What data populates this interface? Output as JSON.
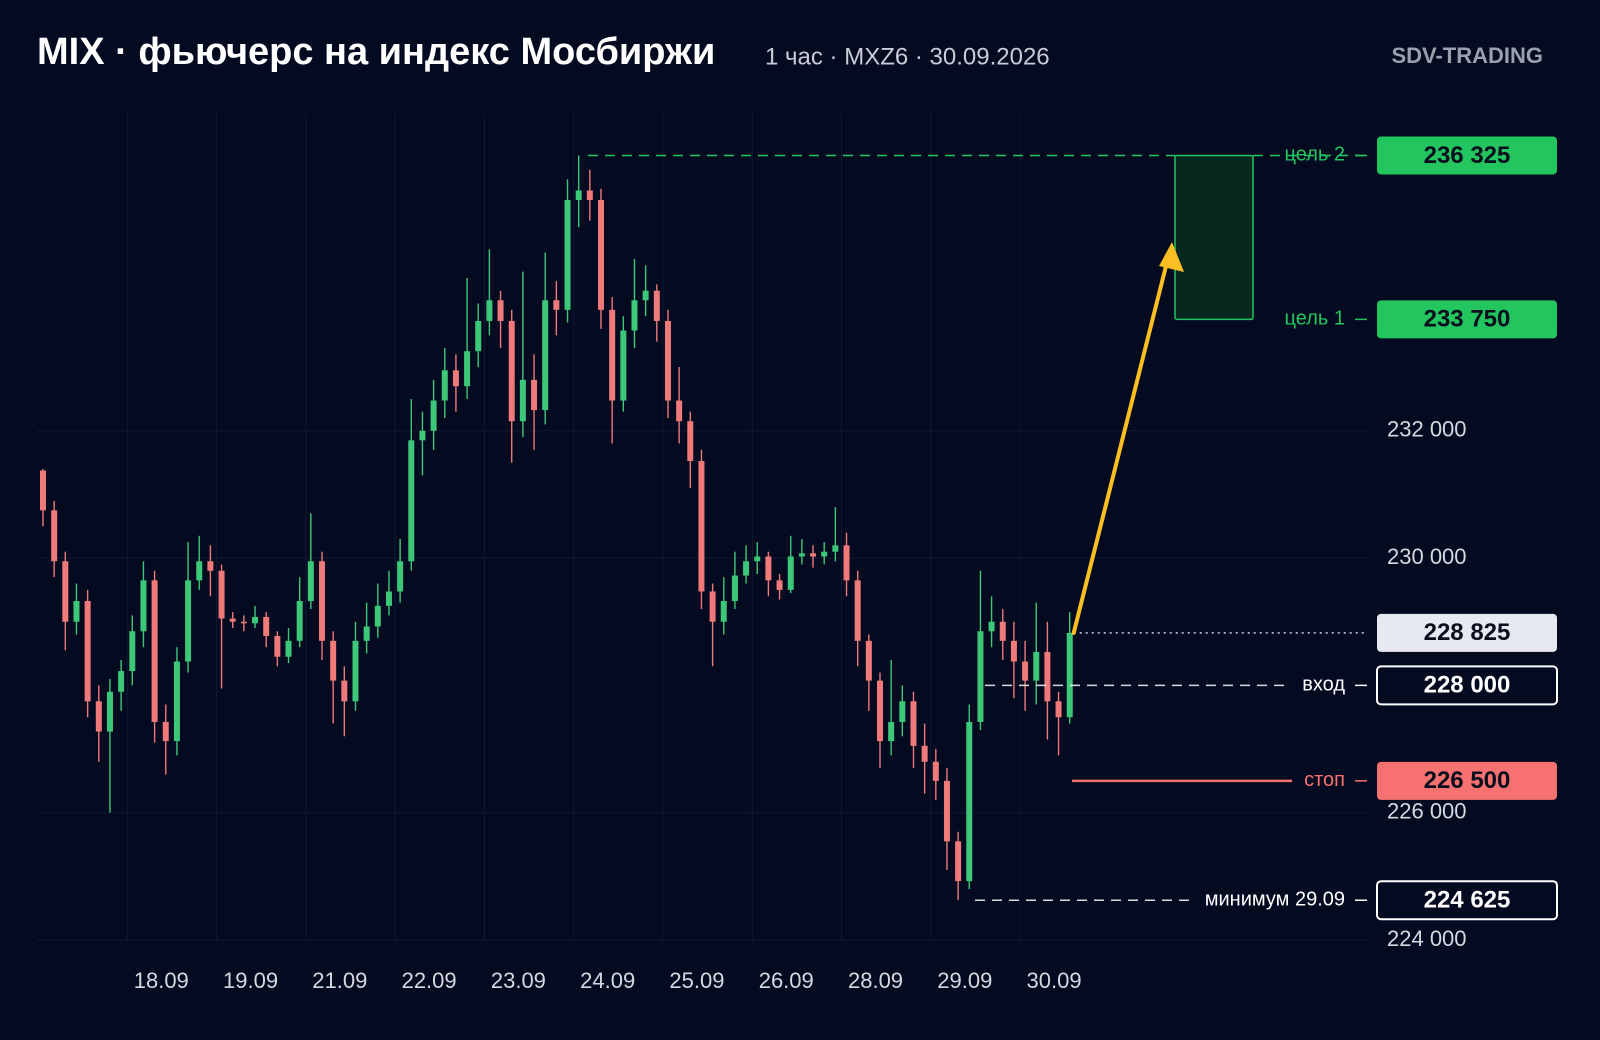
{
  "chart_data": {
    "type": "candlestick",
    "title": "MIX · фьючерс на индекс Мосбиржи",
    "subtitle": "1 час · MXZ6 · 30.09.2026",
    "brand": "SDV-TRADING",
    "up_color": "#3cc878",
    "down_color": "#f07a7a",
    "grid": true,
    "ylim": [
      224000,
      237000
    ],
    "yticks": [
      {
        "value": 224000,
        "label": "224 000"
      },
      {
        "value": 226000,
        "label": "226 000"
      },
      {
        "value": 230000,
        "label": "230 000"
      },
      {
        "value": 232000,
        "label": "232 000"
      }
    ],
    "categories": [
      null,
      null,
      null,
      null,
      null,
      null,
      null,
      null,
      "18.09",
      null,
      null,
      null,
      null,
      null,
      null,
      null,
      "19.09",
      null,
      null,
      null,
      null,
      null,
      null,
      null,
      "21.09",
      null,
      null,
      null,
      null,
      null,
      null,
      null,
      "22.09",
      null,
      null,
      null,
      null,
      null,
      null,
      null,
      "23.09",
      null,
      null,
      null,
      null,
      null,
      null,
      null,
      "24.09",
      null,
      null,
      null,
      null,
      null,
      null,
      null,
      "25.09",
      null,
      null,
      null,
      null,
      null,
      null,
      null,
      "26.09",
      null,
      null,
      null,
      null,
      null,
      null,
      null,
      "28.09",
      null,
      null,
      null,
      null,
      null,
      null,
      null,
      "29.09",
      null,
      null,
      null,
      null,
      null,
      null,
      null,
      "30.09",
      null,
      null,
      null,
      null
    ],
    "open": [
      231375,
      230750,
      229950,
      229000,
      229325,
      227750,
      227275,
      227900,
      228225,
      228850,
      229650,
      227425,
      227125,
      228375,
      229650,
      229950,
      229800,
      229050,
      229000,
      228975,
      229075,
      228775,
      228450,
      228700,
      229325,
      229950,
      228700,
      228075,
      227750,
      228700,
      228925,
      229250,
      229475,
      229950,
      231850,
      232000,
      232475,
      232950,
      232700,
      233250,
      233725,
      234050,
      233725,
      232150,
      232800,
      232325,
      234050,
      233900,
      235625,
      235775,
      235625,
      233900,
      232475,
      233575,
      234050,
      234200,
      233725,
      232475,
      232150,
      231525,
      229475,
      229000,
      229325,
      229725,
      229950,
      230025,
      229650,
      229500,
      230025,
      230075,
      230025,
      230100,
      230200,
      229650,
      228700,
      228075,
      227125,
      227425,
      227750,
      227050,
      226800,
      226500,
      225550,
      224925,
      227425,
      228850,
      229000,
      228700,
      228375,
      228075,
      228525,
      227750,
      227500
    ],
    "high": [
      231400,
      230900,
      230100,
      229600,
      229500,
      228000,
      228100,
      228400,
      229100,
      229950,
      229800,
      227700,
      228600,
      230250,
      230350,
      230200,
      229900,
      229150,
      229100,
      229250,
      229150,
      228850,
      228900,
      229700,
      230700,
      230100,
      228850,
      228300,
      229000,
      229300,
      229600,
      229800,
      230300,
      232500,
      232300,
      232800,
      233300,
      233200,
      234400,
      234000,
      234850,
      234200,
      233900,
      234500,
      233200,
      234800,
      234350,
      235950,
      236325,
      236100,
      235800,
      234100,
      233800,
      234700,
      234600,
      234300,
      233900,
      233000,
      232300,
      231700,
      229600,
      229700,
      230100,
      230200,
      230250,
      230100,
      229750,
      230350,
      230300,
      230200,
      230250,
      230800,
      230400,
      229800,
      228800,
      228200,
      228400,
      228000,
      227900,
      227400,
      227000,
      226700,
      225700,
      227700,
      229800,
      229400,
      229200,
      229000,
      228700,
      229300,
      229000,
      227900,
      229150
    ],
    "low": [
      230500,
      229700,
      228550,
      228800,
      227500,
      226800,
      226000,
      227600,
      228000,
      228600,
      227100,
      226600,
      226900,
      228200,
      229500,
      229400,
      227950,
      228900,
      228850,
      228900,
      228600,
      228300,
      228350,
      228600,
      229200,
      228400,
      227400,
      227200,
      227600,
      228500,
      228750,
      229100,
      229300,
      229800,
      231300,
      231700,
      232200,
      232300,
      232500,
      233000,
      233500,
      233300,
      231500,
      231900,
      231700,
      232100,
      233500,
      233700,
      235200,
      235300,
      233600,
      231800,
      232300,
      233300,
      233800,
      233400,
      232200,
      231800,
      231100,
      229200,
      228300,
      228800,
      229200,
      229600,
      229750,
      229400,
      229350,
      229450,
      229900,
      229850,
      229900,
      229950,
      229400,
      228300,
      227600,
      226700,
      226900,
      227200,
      226700,
      226300,
      226200,
      225100,
      224625,
      224800,
      227300,
      228600,
      228400,
      227800,
      227600,
      227700,
      227150,
      226900,
      227400
    ],
    "close": [
      230750,
      229950,
      229000,
      229325,
      227750,
      227275,
      227900,
      228225,
      228850,
      229650,
      227425,
      227125,
      228375,
      229650,
      229950,
      229800,
      229050,
      229000,
      228975,
      229075,
      228775,
      228450,
      228700,
      229325,
      229950,
      228700,
      228075,
      227750,
      228700,
      228925,
      229250,
      229475,
      229950,
      231850,
      232000,
      232475,
      232950,
      232700,
      233250,
      233725,
      234050,
      233725,
      232150,
      232800,
      232325,
      234050,
      233900,
      235625,
      235775,
      235625,
      233900,
      232475,
      233575,
      234050,
      234200,
      233725,
      232475,
      232150,
      231525,
      229475,
      229000,
      229325,
      229725,
      229950,
      230025,
      229650,
      229500,
      230025,
      230075,
      230025,
      230100,
      230200,
      229650,
      228700,
      228075,
      227125,
      227425,
      227750,
      227050,
      226800,
      226500,
      225550,
      224925,
      227425,
      228850,
      229000,
      228700,
      228375,
      228075,
      228525,
      227750,
      227500,
      228825
    ],
    "last_label": "228 825",
    "levels": [
      {
        "label": "цель 2",
        "value": 236325,
        "value_label": "236 325",
        "color": "#22c55e",
        "style": "dashed",
        "box": "filled"
      },
      {
        "label": "цель 1",
        "value": 233750,
        "value_label": "233 750",
        "color": "#22c55e",
        "style": "none",
        "box": "filled"
      },
      {
        "label": "вход",
        "value": 228000,
        "value_label": "228 000",
        "color": "#ffffff",
        "style": "dashed",
        "box": "outline"
      },
      {
        "label": "стоп",
        "value": 226500,
        "value_label": "226 500",
        "color": "#f87171",
        "style": "solid",
        "box": "filled"
      },
      {
        "label": "минимум 29.09",
        "value": 224625,
        "value_label": "224 625",
        "color": "#ffffff",
        "style": "dashed",
        "box": "outline"
      }
    ]
  }
}
